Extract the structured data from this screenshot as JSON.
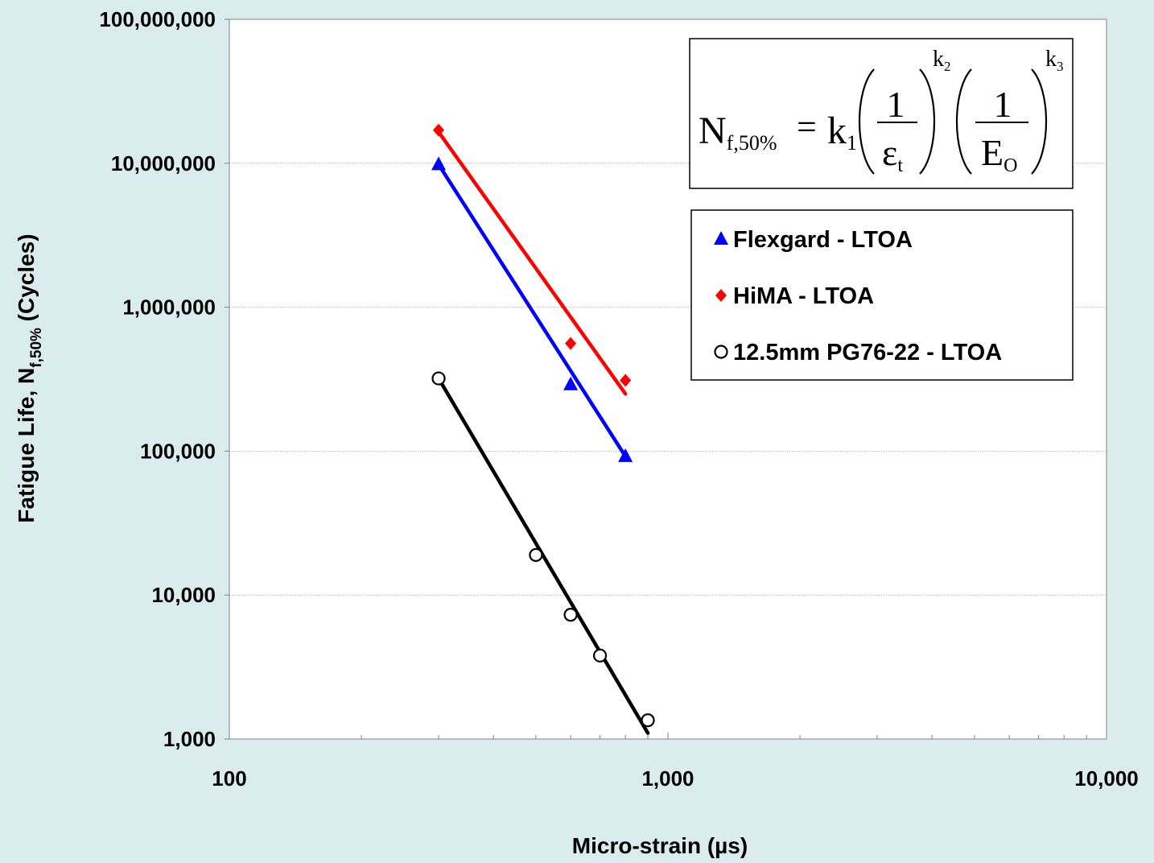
{
  "chart_data": {
    "type": "scatter",
    "xlabel": "Micro-strain (µs)",
    "ylabel": {
      "prefix": "Fatigue Life, N",
      "subscript": "f,50%",
      "suffix": " (Cycles)"
    },
    "xscale": "log",
    "yscale": "log",
    "xlim": [
      100,
      10000
    ],
    "ylim": [
      1000,
      100000000
    ],
    "x_ticks": [
      {
        "value": 100,
        "label": "100"
      },
      {
        "value": 1000,
        "label": "1,000"
      },
      {
        "value": 10000,
        "label": "10,000"
      }
    ],
    "y_ticks": [
      {
        "value": 1000,
        "label": "1,000"
      },
      {
        "value": 10000,
        "label": "10,000"
      },
      {
        "value": 100000,
        "label": "100,000"
      },
      {
        "value": 1000000,
        "label": "1,000,000"
      },
      {
        "value": 10000000,
        "label": "10,000,000"
      },
      {
        "value": 100000000,
        "label": "100,000,000"
      }
    ],
    "grid": "horizontal",
    "legend_position": "top-right",
    "equation": {
      "lhs": "N",
      "lhs_sub": "f,50%",
      "eq": "=",
      "k1": "k",
      "k1_sub": "1",
      "num": "1",
      "den1": "ε",
      "den1_sub": "t",
      "den2": "E",
      "den2_sub": "O",
      "exp1": "k",
      "exp1_sub": "2",
      "exp2": "k",
      "exp2_sub": "3"
    },
    "series": [
      {
        "name": "Flexgard - LTOA",
        "marker": "triangle",
        "color": "#0000ff",
        "points": [
          [
            300,
            9800000
          ],
          [
            600,
            290000
          ],
          [
            800,
            92000
          ]
        ],
        "trendline": [
          [
            300,
            9800000
          ],
          [
            800,
            92000
          ]
        ]
      },
      {
        "name": "HiMA - LTOA",
        "marker": "diamond",
        "color": "#ff0000",
        "points": [
          [
            300,
            17000000
          ],
          [
            600,
            560000
          ],
          [
            800,
            310000
          ]
        ],
        "trendline": [
          [
            300,
            16500000
          ],
          [
            800,
            250000
          ]
        ]
      },
      {
        "name": "12.5mm PG76-22 - LTOA",
        "marker": "circle",
        "color": "#000000",
        "points": [
          [
            300,
            320000
          ],
          [
            500,
            19000
          ],
          [
            600,
            7300
          ],
          [
            700,
            3800
          ],
          [
            900,
            1350
          ]
        ],
        "trendline": [
          [
            300,
            320000
          ],
          [
            900,
            1100
          ]
        ]
      }
    ]
  }
}
